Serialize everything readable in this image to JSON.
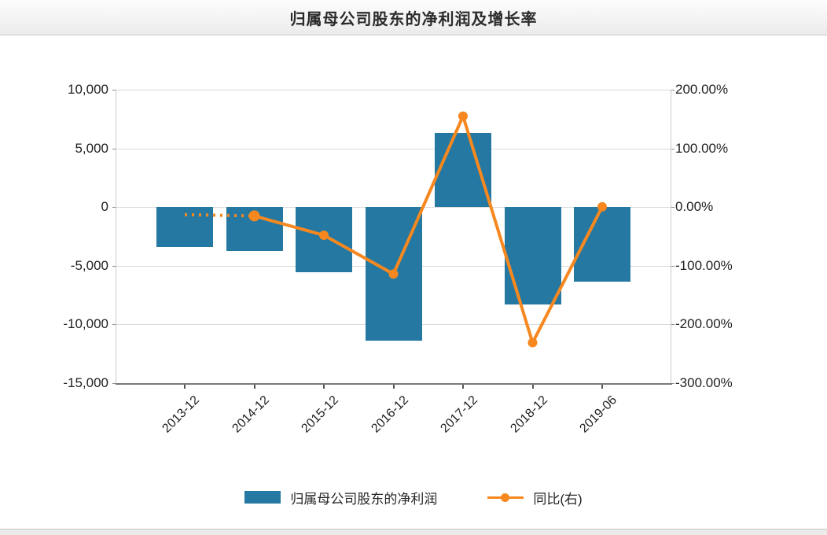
{
  "header": {
    "title": "归属母公司股东的净利润及增长率"
  },
  "chart_data": {
    "type": "bar+line",
    "categories": [
      "2013-12",
      "2014-12",
      "2015-12",
      "2016-12",
      "2017-12",
      "2018-12",
      "2019-06"
    ],
    "series": [
      {
        "name": "归属母公司股东的净利润",
        "type": "bar",
        "yaxis": "left",
        "values": [
          -3400,
          -3750,
          -5560,
          -11400,
          6330,
          -8300,
          -6370
        ]
      },
      {
        "name": "同比(右)",
        "type": "line",
        "yaxis": "right",
        "unit": "%",
        "values": [
          -13,
          -15,
          -48,
          -114,
          155,
          -231,
          0.5
        ],
        "first_segment_style": "dotted",
        "markers_on": [
          1,
          2,
          3,
          4,
          5,
          6
        ]
      }
    ],
    "left_axis": {
      "ticks": [
        "10,000",
        "5,000",
        "0",
        "-5,000",
        "-10,000",
        "-15,000"
      ],
      "max": 10000,
      "min": -15000
    },
    "right_axis": {
      "ticks": [
        "200.00%",
        "100.00%",
        "0.00%",
        "-100.00%",
        "-200.00%",
        "-300.00%"
      ],
      "max": 200,
      "min": -300
    },
    "grid": true,
    "legend_position": "bottom"
  },
  "colors": {
    "bar": "#2478a2",
    "line": "#f6881f",
    "gridline": "#d9d9d9",
    "axis_line": "#cccccc",
    "x_axis_line": "#7a7a7a",
    "text": "#1f1f1f"
  }
}
